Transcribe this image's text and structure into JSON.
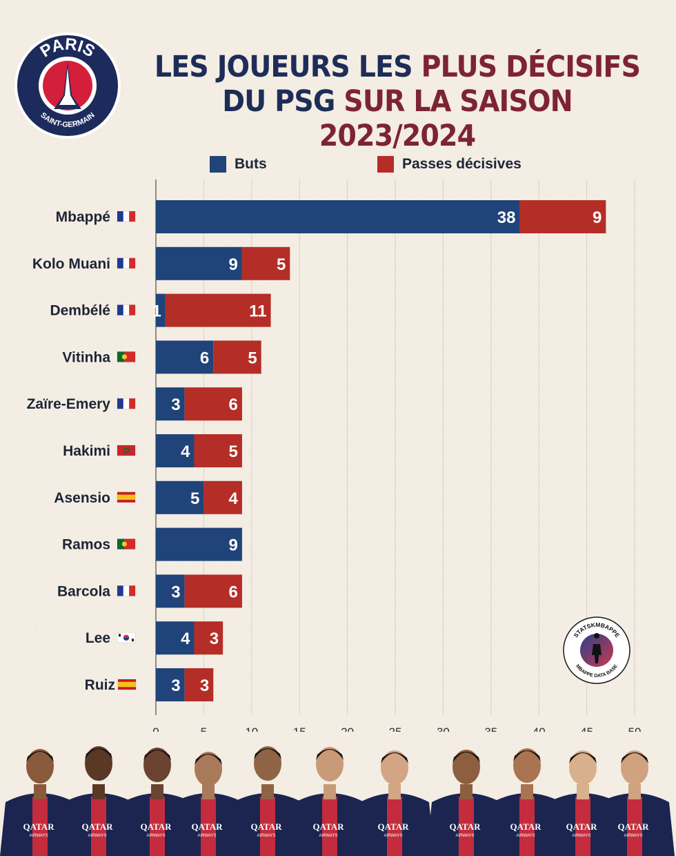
{
  "logo": {
    "text_top": "PARIS",
    "text_bottom": "SAINT-GERMAIN",
    "colors": {
      "ring": "#1d2b5c",
      "red": "#d31f3b",
      "white": "#ffffff"
    }
  },
  "title": {
    "line1_blue": "LES JOUEURS LES ",
    "line1_red": "PLUS DÉCISIFS",
    "line2_blue": "DU PSG ",
    "line2_red": "SUR LA SAISON 2023/2024"
  },
  "legend": [
    {
      "label": "Buts",
      "color": "#204479"
    },
    {
      "label": "Passes décisives",
      "color": "#b52d27"
    }
  ],
  "chart_data": {
    "type": "bar",
    "orientation": "horizontal",
    "stacked": true,
    "categories": [
      "Mbappé",
      "Kolo Muani",
      "Dembélé",
      "Vitinha",
      "Zaïre-Emery",
      "Hakimi",
      "Asensio",
      "Ramos",
      "Barcola",
      "Lee",
      "Ruiz"
    ],
    "flags": [
      "fr",
      "fr",
      "fr",
      "pt",
      "fr",
      "ma",
      "es",
      "pt",
      "fr",
      "kr",
      "es"
    ],
    "series": [
      {
        "name": "Buts",
        "color": "#204479",
        "values": [
          38,
          9,
          1,
          6,
          3,
          4,
          5,
          9,
          3,
          4,
          3
        ]
      },
      {
        "name": "Passes décisives",
        "color": "#b52d27",
        "values": [
          9,
          5,
          11,
          5,
          6,
          5,
          4,
          0,
          6,
          3,
          3
        ]
      }
    ],
    "xlim": [
      0,
      50
    ],
    "xticks": [
      0,
      5,
      10,
      15,
      20,
      25,
      30,
      35,
      40,
      45,
      50
    ],
    "grid": true,
    "legend_position": "top"
  },
  "badge": {
    "text_top": "STATSKMBAPPE",
    "text_bottom": "MBAPPE DATA BASE"
  },
  "players_strip": {
    "count": 11,
    "sponsor": "QATAR",
    "sponsor_sub": "AIRWAYS"
  }
}
